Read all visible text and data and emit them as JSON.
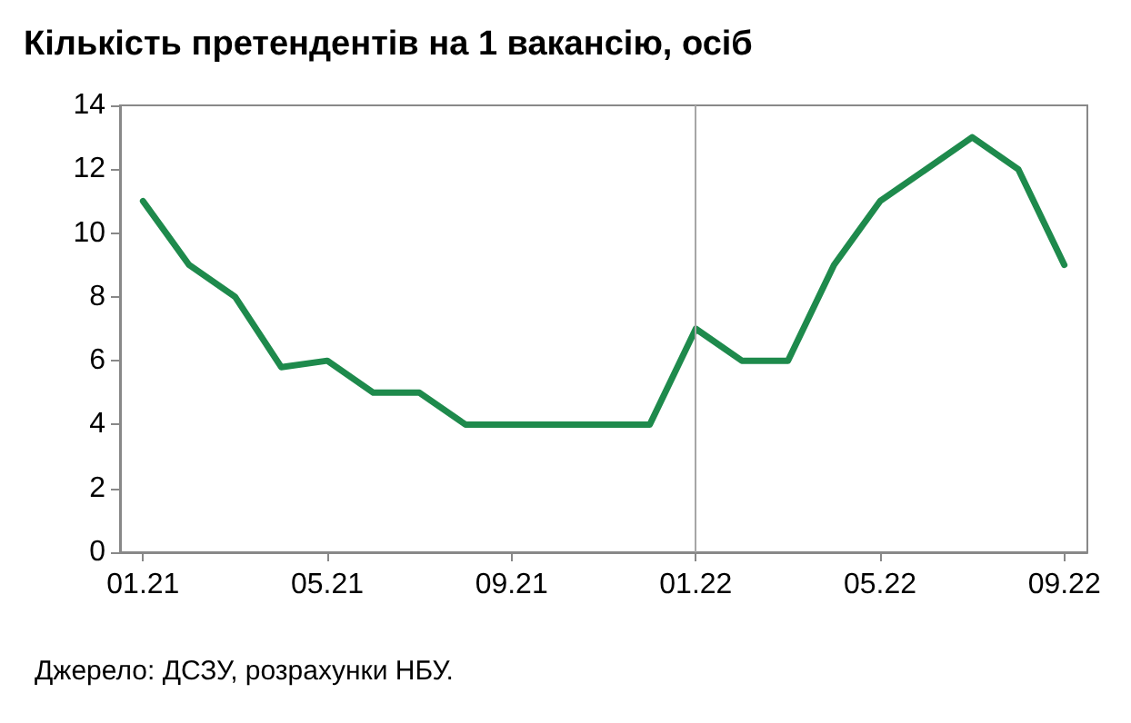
{
  "chart_data": {
    "type": "line",
    "title": "Кількість претендентів на 1 вакансію, осіб",
    "categories": [
      "01.21",
      null,
      null,
      null,
      "05.21",
      null,
      null,
      null,
      "09.21",
      null,
      null,
      null,
      "01.22",
      null,
      null,
      null,
      "05.22",
      null,
      null,
      null,
      "09.22"
    ],
    "series": [
      {
        "color": "#1e8a4c",
        "values": [
          11,
          9,
          8,
          5.8,
          6,
          5,
          5,
          4,
          4,
          4,
          4,
          4,
          7,
          6,
          6,
          9,
          11,
          12,
          13,
          12,
          9
        ]
      }
    ],
    "ylim": [
      0,
      14
    ],
    "yticks": [
      0,
      2,
      4,
      6,
      8,
      10,
      12,
      14
    ],
    "grid": false,
    "marker": "none",
    "line_style": "solid",
    "ref_lines": [
      {
        "axis": "x",
        "value": "01.22",
        "color": "#a6a6a6"
      }
    ],
    "annotations": [
      "Джерело: ДСЗУ, розрахунки НБУ."
    ]
  }
}
